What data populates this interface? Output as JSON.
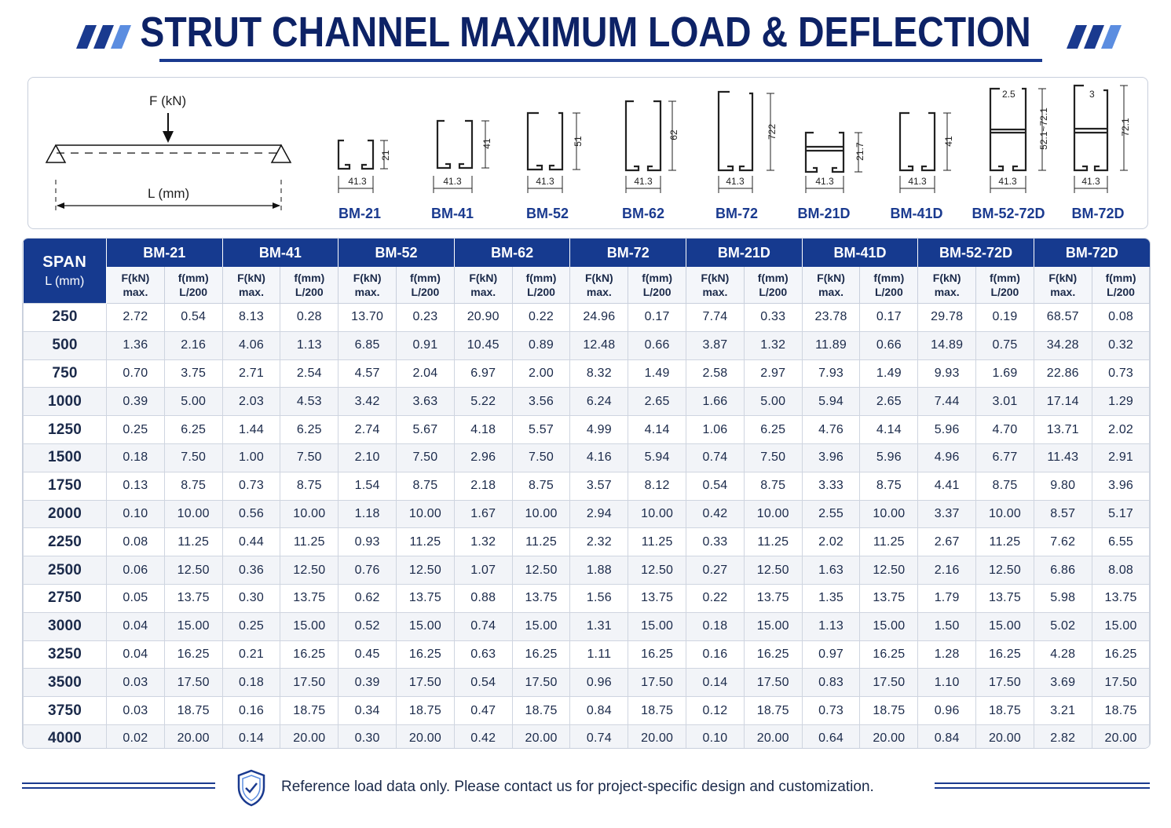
{
  "header": {
    "title": "STRUT CHANNEL MAXIMUM LOAD & DEFLECTION"
  },
  "diagram": {
    "force_label": "F (kN)",
    "length_label": "L (mm)",
    "profiles": [
      {
        "name": "BM-21",
        "width": "41.3",
        "height": "21"
      },
      {
        "name": "BM-41",
        "width": "41.3",
        "height": "41"
      },
      {
        "name": "BM-52",
        "width": "41.3",
        "height": "51"
      },
      {
        "name": "BM-62",
        "width": "41.3",
        "height": "62"
      },
      {
        "name": "BM-72",
        "width": "41.3",
        "height": "722"
      },
      {
        "name": "BM-21D",
        "width": "41.3",
        "height": "21.7"
      },
      {
        "name": "BM-41D",
        "width": "41.3",
        "height": "41"
      },
      {
        "name": "BM-52-72D",
        "width": "41.3",
        "height": "52.1~72.1",
        "thickness": "2.5"
      },
      {
        "name": "BM-72D",
        "width": "41.3",
        "height": "72.1",
        "thickness": "3"
      }
    ]
  },
  "table": {
    "span_header": "SPAN",
    "span_unit": "L (mm)",
    "sub_f_top": "F(kN)",
    "sub_f_bottom": "max.",
    "sub_d_top": "f(mm)",
    "sub_d_bottom": "L/200",
    "models": [
      "BM-21",
      "BM-41",
      "BM-52",
      "BM-62",
      "BM-72",
      "BM-21D",
      "BM-41D",
      "BM-52-72D",
      "BM-72D"
    ],
    "rows": [
      {
        "span": "250",
        "values": [
          "2.72",
          "0.54",
          "8.13",
          "0.28",
          "13.70",
          "0.23",
          "20.90",
          "0.22",
          "24.96",
          "0.17",
          "7.74",
          "0.33",
          "23.78",
          "0.17",
          "29.78",
          "0.19",
          "68.57",
          "0.08"
        ]
      },
      {
        "span": "500",
        "values": [
          "1.36",
          "2.16",
          "4.06",
          "1.13",
          "6.85",
          "0.91",
          "10.45",
          "0.89",
          "12.48",
          "0.66",
          "3.87",
          "1.32",
          "11.89",
          "0.66",
          "14.89",
          "0.75",
          "34.28",
          "0.32"
        ]
      },
      {
        "span": "750",
        "values": [
          "0.70",
          "3.75",
          "2.71",
          "2.54",
          "4.57",
          "2.04",
          "6.97",
          "2.00",
          "8.32",
          "1.49",
          "2.58",
          "2.97",
          "7.93",
          "1.49",
          "9.93",
          "1.69",
          "22.86",
          "0.73"
        ]
      },
      {
        "span": "1000",
        "values": [
          "0.39",
          "5.00",
          "2.03",
          "4.53",
          "3.42",
          "3.63",
          "5.22",
          "3.56",
          "6.24",
          "2.65",
          "1.66",
          "5.00",
          "5.94",
          "2.65",
          "7.44",
          "3.01",
          "17.14",
          "1.29"
        ]
      },
      {
        "span": "1250",
        "values": [
          "0.25",
          "6.25",
          "1.44",
          "6.25",
          "2.74",
          "5.67",
          "4.18",
          "5.57",
          "4.99",
          "4.14",
          "1.06",
          "6.25",
          "4.76",
          "4.14",
          "5.96",
          "4.70",
          "13.71",
          "2.02"
        ]
      },
      {
        "span": "1500",
        "values": [
          "0.18",
          "7.50",
          "1.00",
          "7.50",
          "2.10",
          "7.50",
          "2.96",
          "7.50",
          "4.16",
          "5.94",
          "0.74",
          "7.50",
          "3.96",
          "5.96",
          "4.96",
          "6.77",
          "11.43",
          "2.91"
        ]
      },
      {
        "span": "1750",
        "values": [
          "0.13",
          "8.75",
          "0.73",
          "8.75",
          "1.54",
          "8.75",
          "2.18",
          "8.75",
          "3.57",
          "8.12",
          "0.54",
          "8.75",
          "3.33",
          "8.75",
          "4.41",
          "8.75",
          "9.80",
          "3.96"
        ]
      },
      {
        "span": "2000",
        "values": [
          "0.10",
          "10.00",
          "0.56",
          "10.00",
          "1.18",
          "10.00",
          "1.67",
          "10.00",
          "2.94",
          "10.00",
          "0.42",
          "10.00",
          "2.55",
          "10.00",
          "3.37",
          "10.00",
          "8.57",
          "5.17"
        ]
      },
      {
        "span": "2250",
        "values": [
          "0.08",
          "11.25",
          "0.44",
          "11.25",
          "0.93",
          "11.25",
          "1.32",
          "11.25",
          "2.32",
          "11.25",
          "0.33",
          "11.25",
          "2.02",
          "11.25",
          "2.67",
          "11.25",
          "7.62",
          "6.55"
        ]
      },
      {
        "span": "2500",
        "values": [
          "0.06",
          "12.50",
          "0.36",
          "12.50",
          "0.76",
          "12.50",
          "1.07",
          "12.50",
          "1.88",
          "12.50",
          "0.27",
          "12.50",
          "1.63",
          "12.50",
          "2.16",
          "12.50",
          "6.86",
          "8.08"
        ]
      },
      {
        "span": "2750",
        "values": [
          "0.05",
          "13.75",
          "0.30",
          "13.75",
          "0.62",
          "13.75",
          "0.88",
          "13.75",
          "1.56",
          "13.75",
          "0.22",
          "13.75",
          "1.35",
          "13.75",
          "1.79",
          "13.75",
          "5.98",
          "13.75"
        ]
      },
      {
        "span": "3000",
        "values": [
          "0.04",
          "15.00",
          "0.25",
          "15.00",
          "0.52",
          "15.00",
          "0.74",
          "15.00",
          "1.31",
          "15.00",
          "0.18",
          "15.00",
          "1.13",
          "15.00",
          "1.50",
          "15.00",
          "5.02",
          "15.00"
        ]
      },
      {
        "span": "3250",
        "values": [
          "0.04",
          "16.25",
          "0.21",
          "16.25",
          "0.45",
          "16.25",
          "0.63",
          "16.25",
          "1.11",
          "16.25",
          "0.16",
          "16.25",
          "0.97",
          "16.25",
          "1.28",
          "16.25",
          "4.28",
          "16.25"
        ]
      },
      {
        "span": "3500",
        "values": [
          "0.03",
          "17.50",
          "0.18",
          "17.50",
          "0.39",
          "17.50",
          "0.54",
          "17.50",
          "0.96",
          "17.50",
          "0.14",
          "17.50",
          "0.83",
          "17.50",
          "1.10",
          "17.50",
          "3.69",
          "17.50"
        ]
      },
      {
        "span": "3750",
        "values": [
          "0.03",
          "18.75",
          "0.16",
          "18.75",
          "0.34",
          "18.75",
          "0.47",
          "18.75",
          "0.84",
          "18.75",
          "0.12",
          "18.75",
          "0.73",
          "18.75",
          "0.96",
          "18.75",
          "3.21",
          "18.75"
        ]
      },
      {
        "span": "4000",
        "values": [
          "0.02",
          "20.00",
          "0.14",
          "20.00",
          "0.30",
          "20.00",
          "0.42",
          "20.00",
          "0.74",
          "20.00",
          "0.10",
          "20.00",
          "0.64",
          "20.00",
          "0.84",
          "20.00",
          "2.82",
          "20.00"
        ]
      }
    ]
  },
  "footer": {
    "note": "Reference load data only. Please contact us for project-specific design and customization."
  },
  "colors": {
    "navy": "#0d2266",
    "header_blue": "#163a8f",
    "accent_blue": "#3b6fd8"
  },
  "icons": {
    "title_decoration": "slash-stripes-icon",
    "footer_badge": "shield-check-icon",
    "force_arrow": "arrow-down-icon"
  }
}
